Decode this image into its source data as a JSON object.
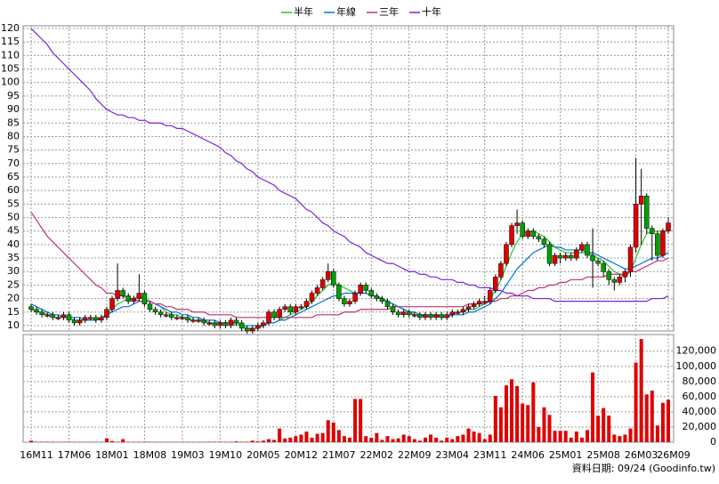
{
  "chart_data": {
    "type": "candlestick",
    "categories": [
      "16M11",
      null,
      null,
      null,
      null,
      null,
      null,
      "17M06",
      null,
      null,
      null,
      null,
      null,
      null,
      "18M01",
      null,
      null,
      null,
      null,
      null,
      null,
      "18M08",
      null,
      null,
      null,
      null,
      null,
      null,
      "19M03",
      null,
      null,
      null,
      null,
      null,
      null,
      "19M10",
      null,
      null,
      null,
      null,
      null,
      null,
      "20M05",
      null,
      null,
      null,
      null,
      null,
      null,
      "20M12",
      null,
      null,
      null,
      null,
      null,
      null,
      "21M07",
      null,
      null,
      null,
      null,
      null,
      null,
      "22M02",
      null,
      null,
      null,
      null,
      null,
      null,
      "22M09",
      null,
      null,
      null,
      null,
      null,
      null,
      "23M04",
      null,
      null,
      null,
      null,
      null,
      null,
      "23M11",
      null,
      null,
      null,
      null,
      null,
      null,
      "24M06",
      null,
      null,
      null,
      null,
      null,
      null,
      "25M01",
      null,
      null,
      null,
      null,
      null,
      null,
      "25M08",
      null,
      null,
      null,
      null,
      null,
      null,
      "26M03",
      null,
      null,
      null,
      null,
      null,
      "26M09"
    ],
    "open": [
      17,
      16,
      15,
      14,
      14,
      13,
      13,
      14,
      12,
      11,
      12,
      13,
      13,
      12,
      13,
      16,
      20,
      23,
      21,
      19,
      20,
      22,
      18,
      16,
      15,
      14,
      14,
      13,
      13,
      13,
      12,
      12,
      12,
      11,
      11,
      10,
      11,
      10,
      12,
      11,
      9,
      8,
      9,
      10,
      11,
      15,
      13,
      16,
      17,
      15,
      17,
      17,
      19,
      22,
      24,
      27,
      30,
      25,
      20,
      18,
      19,
      22,
      25,
      23,
      21,
      20,
      19,
      17,
      15,
      14,
      15,
      14,
      14,
      13,
      14,
      13,
      14,
      13,
      14,
      15,
      15,
      16,
      17,
      18,
      19,
      19,
      23,
      28,
      33,
      40,
      47,
      48,
      43,
      45,
      43,
      42,
      40,
      33,
      36,
      35,
      36,
      35,
      38,
      40,
      36,
      34,
      33,
      30,
      27,
      26,
      28,
      30,
      39,
      55,
      58,
      46,
      44,
      36,
      45
    ],
    "high": [
      18,
      17,
      16,
      15,
      15,
      14,
      15,
      15,
      13,
      13,
      14,
      14,
      14,
      14,
      17,
      21,
      33,
      24,
      22,
      21,
      29,
      23,
      19,
      17,
      16,
      15,
      15,
      14,
      14,
      14,
      13,
      13,
      13,
      12,
      12,
      12,
      12,
      13,
      13,
      12,
      10,
      10,
      11,
      12,
      16,
      16,
      17,
      18,
      18,
      18,
      18,
      20,
      23,
      25,
      28,
      33,
      31,
      26,
      21,
      20,
      23,
      26,
      26,
      24,
      22,
      21,
      20,
      18,
      16,
      16,
      16,
      15,
      15,
      15,
      15,
      15,
      15,
      15,
      16,
      16,
      17,
      18,
      19,
      20,
      21,
      24,
      29,
      34,
      41,
      48,
      53,
      49,
      46,
      46,
      44,
      43,
      41,
      37,
      37,
      37,
      37,
      39,
      41,
      41,
      46,
      35,
      34,
      31,
      28,
      29,
      31,
      40,
      72,
      68,
      59,
      47,
      45,
      46,
      50
    ],
    "low": [
      15,
      14,
      13,
      13,
      12,
      12,
      12,
      11,
      10,
      10,
      11,
      12,
      11,
      11,
      12,
      15,
      19,
      20,
      18,
      18,
      19,
      17,
      15,
      14,
      13,
      13,
      12,
      12,
      12,
      11,
      11,
      11,
      10,
      10,
      9,
      9,
      9,
      9,
      10,
      8,
      7,
      7,
      8,
      9,
      10,
      12,
      12,
      15,
      14,
      14,
      16,
      16,
      18,
      21,
      23,
      26,
      24,
      19,
      17,
      17,
      18,
      21,
      22,
      20,
      19,
      18,
      16,
      14,
      13,
      13,
      13,
      13,
      12,
      12,
      12,
      12,
      12,
      12,
      13,
      14,
      14,
      15,
      16,
      17,
      18,
      18,
      22,
      27,
      32,
      39,
      44,
      42,
      42,
      42,
      41,
      39,
      32,
      32,
      33,
      34,
      34,
      34,
      37,
      35,
      24,
      32,
      28,
      25,
      23,
      25,
      26,
      28,
      37,
      40,
      44,
      34,
      34,
      35,
      44
    ],
    "close": [
      16,
      15,
      14,
      14,
      13,
      13,
      14,
      12,
      11,
      12,
      13,
      13,
      12,
      13,
      16,
      20,
      23,
      21,
      19,
      20,
      22,
      18,
      16,
      15,
      14,
      14,
      13,
      13,
      13,
      12,
      12,
      12,
      11,
      11,
      10,
      11,
      10,
      12,
      11,
      9,
      8,
      9,
      10,
      11,
      15,
      13,
      16,
      17,
      15,
      17,
      17,
      19,
      22,
      24,
      27,
      30,
      25,
      20,
      18,
      19,
      22,
      25,
      23,
      21,
      20,
      19,
      17,
      15,
      14,
      15,
      14,
      14,
      13,
      14,
      13,
      14,
      13,
      14,
      15,
      15,
      16,
      17,
      18,
      19,
      19,
      23,
      28,
      33,
      40,
      47,
      48,
      43,
      45,
      43,
      42,
      40,
      33,
      36,
      35,
      36,
      35,
      38,
      40,
      36,
      34,
      33,
      30,
      27,
      26,
      28,
      30,
      39,
      55,
      58,
      46,
      44,
      36,
      45,
      48
    ],
    "up_color": "#e00000",
    "down_color": "#00a000",
    "series": [
      {
        "name": "半年",
        "color": "#30c030",
        "values": [
          16,
          15,
          15,
          14,
          13,
          13,
          13,
          13,
          12,
          12,
          12,
          12,
          12,
          13,
          14,
          16,
          18,
          19,
          20,
          20,
          21,
          20,
          19,
          18,
          17,
          15,
          14,
          14,
          13,
          13,
          12,
          12,
          12,
          11,
          11,
          11,
          11,
          11,
          10,
          10,
          9,
          9,
          9,
          10,
          11,
          11,
          12,
          13,
          14,
          15,
          16,
          17,
          19,
          21,
          23,
          25,
          26,
          25,
          24,
          23,
          22,
          22,
          22,
          21,
          21,
          20,
          19,
          18,
          17,
          16,
          15,
          14,
          14,
          14,
          14,
          14,
          14,
          14,
          14,
          15,
          15,
          16,
          16,
          17,
          18,
          20,
          23,
          27,
          32,
          37,
          41,
          44,
          45,
          45,
          44,
          43,
          41,
          39,
          38,
          37,
          37,
          37,
          37,
          37,
          36,
          35,
          34,
          32,
          30,
          29,
          28,
          30,
          35,
          40,
          44,
          45,
          45,
          45,
          45
        ]
      },
      {
        "name": "年線",
        "color": "#0070e0",
        "values": [
          18,
          17,
          16,
          15,
          14,
          14,
          13,
          13,
          13,
          13,
          12,
          12,
          12,
          13,
          14,
          15,
          16,
          17,
          17,
          18,
          19,
          19,
          19,
          18,
          17,
          16,
          15,
          15,
          14,
          14,
          13,
          13,
          12,
          12,
          12,
          11,
          11,
          11,
          11,
          10,
          10,
          10,
          10,
          10,
          11,
          11,
          12,
          12,
          13,
          14,
          15,
          16,
          17,
          18,
          19,
          20,
          21,
          21,
          22,
          22,
          22,
          22,
          22,
          21,
          21,
          20,
          19,
          18,
          17,
          16,
          15,
          15,
          14,
          14,
          14,
          14,
          13,
          13,
          14,
          14,
          14,
          15,
          15,
          16,
          17,
          18,
          20,
          22,
          25,
          28,
          31,
          33,
          35,
          37,
          38,
          39,
          40,
          39,
          39,
          38,
          38,
          38,
          38,
          37,
          37,
          36,
          35,
          34,
          33,
          32,
          31,
          31,
          32,
          33,
          34,
          35,
          35,
          36,
          37
        ]
      },
      {
        "name": "三年",
        "color": "#c03070",
        "values": [
          52,
          49,
          46,
          43,
          41,
          39,
          37,
          35,
          33,
          31,
          29,
          27,
          25,
          24,
          22,
          22,
          21,
          21,
          20,
          20,
          19,
          19,
          19,
          18,
          18,
          17,
          17,
          16,
          16,
          16,
          15,
          15,
          15,
          14,
          14,
          14,
          14,
          14,
          13,
          13,
          13,
          13,
          13,
          13,
          13,
          13,
          13,
          13,
          13,
          13,
          13,
          13,
          13,
          14,
          14,
          14,
          14,
          14,
          15,
          15,
          15,
          16,
          16,
          16,
          16,
          16,
          16,
          17,
          17,
          17,
          17,
          17,
          17,
          17,
          17,
          17,
          17,
          17,
          17,
          17,
          17,
          18,
          18,
          18,
          18,
          19,
          19,
          20,
          20,
          21,
          21,
          22,
          23,
          23,
          24,
          24,
          25,
          25,
          26,
          26,
          27,
          27,
          27,
          28,
          28,
          28,
          28,
          29,
          29,
          29,
          29,
          30,
          30,
          31,
          32,
          33,
          34,
          34,
          35
        ]
      },
      {
        "name": "十年",
        "color": "#8020e0",
        "values": [
          120,
          118,
          116,
          114,
          111,
          109,
          107,
          105,
          103,
          101,
          99,
          97,
          94,
          92,
          90,
          89,
          88,
          88,
          87,
          87,
          86,
          86,
          85,
          85,
          85,
          84,
          84,
          83,
          83,
          82,
          81,
          80,
          79,
          78,
          77,
          76,
          74,
          73,
          71,
          70,
          68,
          67,
          65,
          64,
          63,
          62,
          60,
          59,
          58,
          57,
          55,
          53,
          52,
          50,
          48,
          47,
          45,
          44,
          43,
          41,
          40,
          39,
          37,
          36,
          35,
          34,
          33,
          33,
          32,
          31,
          30,
          30,
          29,
          29,
          28,
          28,
          27,
          27,
          27,
          26,
          26,
          25,
          25,
          24,
          24,
          24,
          23,
          23,
          22,
          22,
          21,
          21,
          21,
          20,
          20,
          20,
          20,
          19,
          19,
          19,
          19,
          19,
          19,
          19,
          19,
          19,
          19,
          19,
          19,
          19,
          19,
          19,
          19,
          19,
          19,
          20,
          20,
          20,
          21
        ]
      }
    ],
    "volume": {
      "color": "#e00000",
      "axis": "y2",
      "values": [
        2000,
        500,
        500,
        500,
        500,
        300,
        500,
        500,
        300,
        500,
        300,
        300,
        300,
        300,
        5000,
        1500,
        500,
        4000,
        500,
        300,
        500,
        500,
        300,
        300,
        300,
        300,
        300,
        300,
        300,
        300,
        300,
        300,
        300,
        500,
        500,
        500,
        300,
        500,
        1000,
        500,
        500,
        2000,
        1000,
        2000,
        4000,
        3000,
        18000,
        5000,
        6000,
        8000,
        10000,
        14000,
        6000,
        11000,
        12000,
        29000,
        26000,
        16000,
        8000,
        6000,
        57000,
        57000,
        8000,
        6000,
        12000,
        3000,
        8000,
        4000,
        5000,
        10000,
        8000,
        4000,
        2000,
        6000,
        10000,
        6000,
        2000,
        6000,
        4000,
        8000,
        10000,
        18000,
        14000,
        12000,
        4000,
        10000,
        61000,
        46000,
        75000,
        83000,
        74000,
        51000,
        49000,
        79000,
        20000,
        46000,
        36000,
        15000,
        15000,
        15000,
        6000,
        14000,
        6000,
        16000,
        92000,
        35000,
        45000,
        35000,
        10000,
        8000,
        10000,
        18000,
        105000,
        136000,
        63000,
        68000,
        22000,
        52000,
        56000
      ]
    },
    "ylim": [
      8,
      121
    ],
    "yticks": [
      10,
      15,
      20,
      25,
      30,
      35,
      40,
      45,
      50,
      55,
      60,
      65,
      70,
      75,
      80,
      85,
      90,
      95,
      100,
      105,
      110,
      115,
      120
    ],
    "y2lim": [
      0,
      142000
    ],
    "y2ticks": [
      0,
      {
        "value": 20000,
        "label": "20,000"
      },
      {
        "value": 40000,
        "label": "40,000"
      },
      {
        "value": 60000,
        "label": "60,000"
      },
      {
        "value": 80000,
        "label": "80,000"
      },
      {
        "value": 100000,
        "label": "100,000"
      },
      {
        "value": 120000,
        "label": "120,000"
      }
    ],
    "grid": true,
    "legend": "top",
    "source": "資料日期: 09/24 (Goodinfo.tw)"
  }
}
